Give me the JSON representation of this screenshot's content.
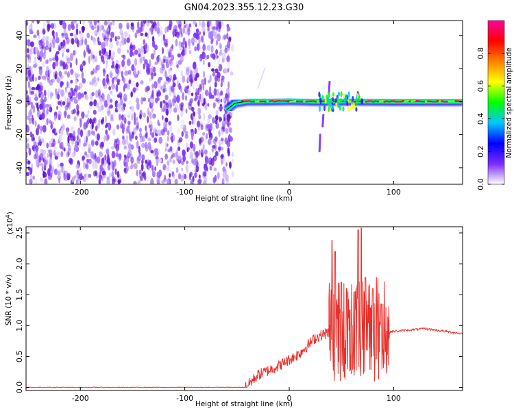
{
  "title": "GN04.2023.355.12.23.G30",
  "chart_data": [
    {
      "type": "heatmap",
      "xlabel": "Height of straight line (km)",
      "ylabel": "Frequency (Hz)",
      "xlim": [
        -252,
        166
      ],
      "ylim": [
        -50,
        49
      ],
      "xticks": [
        -200,
        -100,
        0,
        100
      ],
      "yticks": [
        -40,
        -20,
        0,
        20,
        40
      ],
      "grid": false,
      "noise_region_x": [
        -252,
        -54
      ],
      "ridge": {
        "points": [
          [
            -60,
            -5
          ],
          [
            -52,
            -1
          ],
          [
            -40,
            0.3
          ],
          [
            -20,
            0.3
          ],
          [
            0,
            0.5
          ],
          [
            28,
            0.1
          ],
          [
            60,
            0.3
          ],
          [
            100,
            0.1
          ],
          [
            166,
            0.1
          ]
        ],
        "peak_amplitude": 0.95
      },
      "artifacts": [
        {
          "x": 29,
          "y_range": [
            -30,
            -20
          ]
        },
        {
          "x": 32,
          "y_range": [
            -15,
            -8
          ]
        },
        {
          "x": 38,
          "y_range": [
            5,
            12
          ]
        },
        {
          "x": -30,
          "y_range": [
            8,
            20
          ]
        }
      ],
      "colorbar": {
        "label": "Normalized spectral amplitude",
        "range": [
          0.0,
          1.0
        ],
        "ticks": [
          0.0,
          0.2,
          0.4,
          0.6,
          0.8
        ],
        "tick_labels": [
          "0.0",
          "0.2",
          "0.4",
          "0.6",
          "0.8"
        ],
        "colors": [
          "#ffffff",
          "#7b2bff",
          "#0000ff",
          "#00c8ff",
          "#00ff00",
          "#ffff00",
          "#ff8000",
          "#ff0000",
          "#ff00a0"
        ]
      }
    },
    {
      "type": "line",
      "xlabel": "Height of straight line (km)",
      "ylabel": "SNR (10 * v/v)",
      "exponent_label": "(x10",
      "exponent_power": "4",
      "exponent_close": ")",
      "xlim": [
        -252,
        166
      ],
      "ylim": [
        -0.05,
        2.6
      ],
      "xticks": [
        -200,
        -100,
        0,
        100
      ],
      "yticks": [
        0.0,
        0.5,
        1.0,
        1.5,
        2.0,
        2.5
      ],
      "ytick_labels": [
        "0.0",
        "0.5",
        "1.0",
        "1.5",
        "2.0",
        "2.5"
      ],
      "color": "#e8302a",
      "grid": false,
      "baseline_region": {
        "x": [
          -252,
          -42
        ],
        "value": 0.0
      },
      "ramp": [
        [
          -42,
          0.0
        ],
        [
          -30,
          0.2
        ],
        [
          -10,
          0.35
        ],
        [
          10,
          0.55
        ],
        [
          25,
          0.8
        ],
        [
          38,
          0.9
        ]
      ],
      "burst_region": [
        38,
        96
      ],
      "burst_peaks": [
        [
          41,
          2.38
        ],
        [
          44,
          2.2
        ],
        [
          50,
          1.7
        ],
        [
          55,
          1.6
        ],
        [
          63,
          1.55
        ],
        [
          66,
          2.55
        ],
        [
          69,
          2.58
        ],
        [
          73,
          1.78
        ],
        [
          80,
          1.6
        ],
        [
          88,
          1.35
        ]
      ],
      "tail": [
        [
          96,
          0.9
        ],
        [
          130,
          0.95
        ],
        [
          166,
          0.87
        ]
      ]
    }
  ],
  "colors": {
    "accent": "#e8302a",
    "noise": "#7b2bff"
  }
}
